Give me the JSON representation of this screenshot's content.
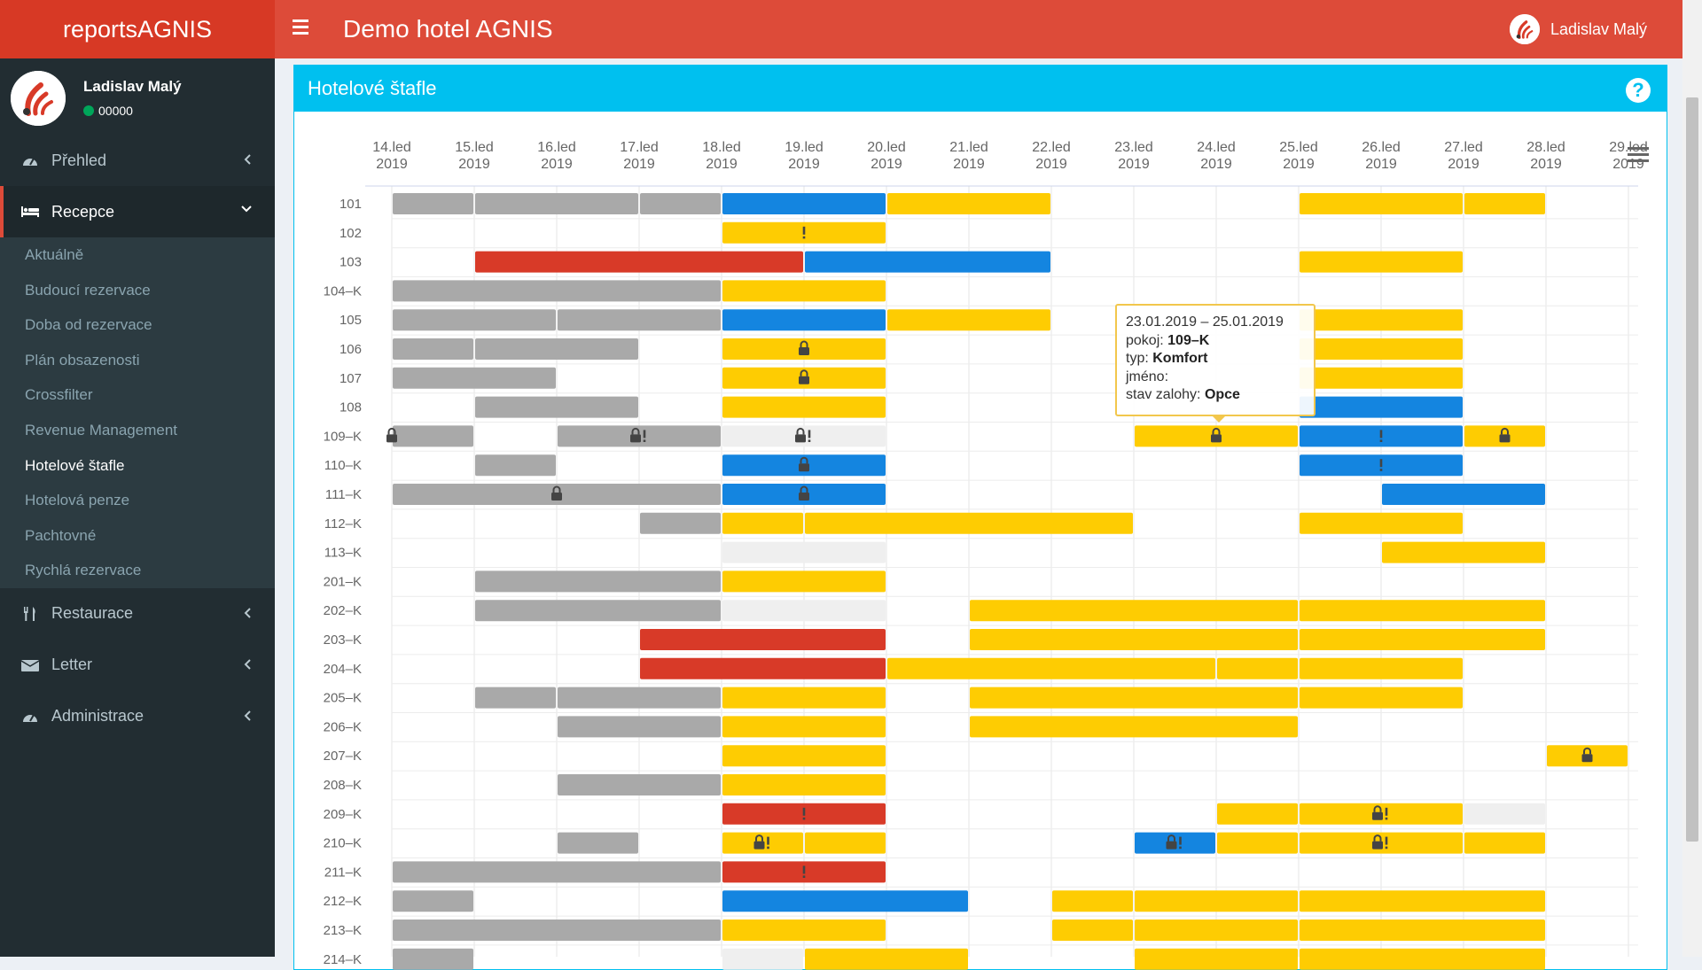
{
  "app": {
    "title": "reportsAGNIS",
    "hotel": "Demo hotel AGNIS"
  },
  "user": {
    "name": "Ladislav Malý",
    "status": "00000"
  },
  "sidebar": {
    "menu": [
      {
        "label": "Přehled",
        "icon": "dashboard-icon"
      },
      {
        "label": "Recepce",
        "icon": "bed-icon"
      },
      {
        "label": "Restaurace",
        "icon": "cutlery-icon"
      },
      {
        "label": "Letter",
        "icon": "envelope-icon"
      },
      {
        "label": "Administrace",
        "icon": "dashboard-icon"
      }
    ],
    "submenu": [
      "Aktuálně",
      "Budoucí rezervace",
      "Doba od rezervace",
      "Plán obsazenosti",
      "Crossfilter",
      "Revenue Management",
      "Hotelové štafle",
      "Hotelová penze",
      "Pachtovné",
      "Rychlá rezervace"
    ],
    "active_submenu": "Hotelové štafle"
  },
  "box": {
    "title": "Hotelové štafle",
    "help": "?"
  },
  "tooltip": {
    "dates": "23.01.2019 – 25.01.2019",
    "room_label": "pokoj:",
    "room": "109–K",
    "type_label": "typ:",
    "type": "Komfort",
    "name_label": "jméno:",
    "name": "",
    "deposit_label": "stav zalohy:",
    "deposit": "Opce"
  },
  "chart_data": {
    "type": "gantt",
    "dates": [
      "14.led 2019",
      "15.led 2019",
      "16.led 2019",
      "17.led 2019",
      "18.led 2019",
      "19.led 2019",
      "20.led 2019",
      "21.led 2019",
      "22.led 2019",
      "23.led 2019",
      "24.led 2019",
      "25.led 2019",
      "26.led 2019",
      "27.led 2019",
      "28.led 2019",
      "29.led 2019"
    ],
    "rooms": [
      "101",
      "102",
      "103",
      "104–K",
      "105",
      "106",
      "107",
      "108",
      "109–K",
      "110–K",
      "111–K",
      "112–K",
      "113–K",
      "201–K",
      "202–K",
      "203–K",
      "204–K",
      "205–K",
      "206–K",
      "207–K",
      "208–K",
      "209–K",
      "210–K",
      "211–K",
      "212–K",
      "213–K",
      "214–K"
    ],
    "colors": {
      "gray": "#a9a9a9",
      "blue": "#1485e0",
      "yellow": "#fecc02",
      "red": "#d83a28",
      "light": "#efefef"
    },
    "bars": [
      [
        "101",
        0,
        1,
        "gray",
        ""
      ],
      [
        "101",
        1,
        3,
        "gray",
        ""
      ],
      [
        "101",
        3,
        4,
        "gray",
        ""
      ],
      [
        "101",
        4,
        6,
        "blue",
        ""
      ],
      [
        "101",
        6,
        8,
        "yellow",
        ""
      ],
      [
        "101",
        11,
        13,
        "yellow",
        ""
      ],
      [
        "101",
        13,
        14,
        "yellow",
        ""
      ],
      [
        "102",
        4,
        6,
        "yellow",
        "!"
      ],
      [
        "103",
        1,
        5,
        "red",
        ""
      ],
      [
        "103",
        5,
        8,
        "blue",
        ""
      ],
      [
        "103",
        11,
        13,
        "yellow",
        ""
      ],
      [
        "104–K",
        0,
        4,
        "gray",
        ""
      ],
      [
        "104–K",
        4,
        6,
        "yellow",
        ""
      ],
      [
        "105",
        0,
        2,
        "gray",
        ""
      ],
      [
        "105",
        2,
        4,
        "gray",
        ""
      ],
      [
        "105",
        4,
        6,
        "blue",
        ""
      ],
      [
        "105",
        6,
        8,
        "yellow",
        ""
      ],
      [
        "105",
        11,
        13,
        "yellow",
        ""
      ],
      [
        "106",
        0,
        1,
        "gray",
        ""
      ],
      [
        "106",
        1,
        3,
        "gray",
        ""
      ],
      [
        "106",
        4,
        6,
        "yellow",
        "lock"
      ],
      [
        "106",
        11,
        13,
        "yellow",
        ""
      ],
      [
        "107",
        0,
        2,
        "gray",
        ""
      ],
      [
        "107",
        4,
        6,
        "yellow",
        "lock"
      ],
      [
        "107",
        11,
        13,
        "yellow",
        ""
      ],
      [
        "108",
        1,
        3,
        "gray",
        ""
      ],
      [
        "108",
        4,
        6,
        "yellow",
        ""
      ],
      [
        "108",
        11,
        13,
        "blue",
        ""
      ],
      [
        "109–K",
        0,
        1,
        "gray",
        "lock-left"
      ],
      [
        "109–K",
        2,
        4,
        "gray",
        "lock!"
      ],
      [
        "109–K",
        4,
        6,
        "light",
        "lock!"
      ],
      [
        "109–K",
        9,
        11,
        "yellow",
        "lock"
      ],
      [
        "109–K",
        11,
        13,
        "blue",
        "!"
      ],
      [
        "109–K",
        13,
        14,
        "yellow",
        "lock"
      ],
      [
        "110–K",
        1,
        2,
        "gray",
        ""
      ],
      [
        "110–K",
        4,
        6,
        "blue",
        "lock"
      ],
      [
        "110–K",
        11,
        13,
        "blue",
        "!"
      ],
      [
        "111–K",
        0,
        4,
        "gray",
        "lock"
      ],
      [
        "111–K",
        4,
        6,
        "blue",
        "lock"
      ],
      [
        "111–K",
        12,
        14,
        "blue",
        ""
      ],
      [
        "112–K",
        3,
        4,
        "gray",
        ""
      ],
      [
        "112–K",
        4,
        5,
        "yellow",
        ""
      ],
      [
        "112–K",
        5,
        9,
        "yellow",
        ""
      ],
      [
        "112–K",
        11,
        13,
        "yellow",
        ""
      ],
      [
        "113–K",
        4,
        6,
        "light",
        ""
      ],
      [
        "113–K",
        12,
        14,
        "yellow",
        ""
      ],
      [
        "201–K",
        1,
        4,
        "gray",
        ""
      ],
      [
        "201–K",
        4,
        6,
        "yellow",
        ""
      ],
      [
        "202–K",
        1,
        4,
        "gray",
        ""
      ],
      [
        "202–K",
        4,
        6,
        "light",
        ""
      ],
      [
        "202–K",
        7,
        11,
        "yellow",
        ""
      ],
      [
        "202–K",
        11,
        14,
        "yellow",
        ""
      ],
      [
        "203–K",
        3,
        6,
        "red",
        ""
      ],
      [
        "203–K",
        7,
        11,
        "yellow",
        ""
      ],
      [
        "203–K",
        11,
        14,
        "yellow",
        ""
      ],
      [
        "204–K",
        3,
        6,
        "red",
        ""
      ],
      [
        "204–K",
        6,
        10,
        "yellow",
        ""
      ],
      [
        "204–K",
        10,
        11,
        "yellow",
        ""
      ],
      [
        "204–K",
        11,
        13,
        "yellow",
        ""
      ],
      [
        "205–K",
        1,
        2,
        "gray",
        ""
      ],
      [
        "205–K",
        2,
        4,
        "gray",
        ""
      ],
      [
        "205–K",
        4,
        6,
        "yellow",
        ""
      ],
      [
        "205–K",
        7,
        11,
        "yellow",
        ""
      ],
      [
        "205–K",
        11,
        13,
        "yellow",
        ""
      ],
      [
        "206–K",
        2,
        4,
        "gray",
        ""
      ],
      [
        "206–K",
        4,
        6,
        "yellow",
        ""
      ],
      [
        "206–K",
        7,
        11,
        "yellow",
        ""
      ],
      [
        "207–K",
        4,
        6,
        "yellow",
        ""
      ],
      [
        "207–K",
        14,
        15,
        "yellow",
        "lock"
      ],
      [
        "208–K",
        2,
        4,
        "gray",
        ""
      ],
      [
        "208–K",
        4,
        6,
        "yellow",
        ""
      ],
      [
        "209–K",
        4,
        6,
        "red",
        "!"
      ],
      [
        "209–K",
        10,
        11,
        "yellow",
        ""
      ],
      [
        "209–K",
        11,
        13,
        "yellow",
        "lock!"
      ],
      [
        "209–K",
        13,
        14,
        "light",
        ""
      ],
      [
        "210–K",
        2,
        3,
        "gray",
        ""
      ],
      [
        "210–K",
        4,
        5,
        "yellow",
        "lock!"
      ],
      [
        "210–K",
        5,
        6,
        "yellow",
        ""
      ],
      [
        "210–K",
        9,
        10,
        "blue",
        "lock!"
      ],
      [
        "210–K",
        10,
        11,
        "yellow",
        ""
      ],
      [
        "210–K",
        11,
        13,
        "yellow",
        "lock!"
      ],
      [
        "210–K",
        13,
        14,
        "yellow",
        ""
      ],
      [
        "211–K",
        0,
        4,
        "gray",
        ""
      ],
      [
        "211–K",
        4,
        6,
        "red",
        "!"
      ],
      [
        "212–K",
        0,
        1,
        "gray",
        ""
      ],
      [
        "212–K",
        4,
        7,
        "blue",
        ""
      ],
      [
        "212–K",
        8,
        9,
        "yellow",
        ""
      ],
      [
        "212–K",
        9,
        11,
        "yellow",
        ""
      ],
      [
        "212–K",
        11,
        14,
        "yellow",
        ""
      ],
      [
        "213–K",
        0,
        4,
        "gray",
        ""
      ],
      [
        "213–K",
        4,
        6,
        "yellow",
        ""
      ],
      [
        "213–K",
        8,
        9,
        "yellow",
        ""
      ],
      [
        "213–K",
        9,
        11,
        "yellow",
        ""
      ],
      [
        "213–K",
        11,
        14,
        "yellow",
        ""
      ],
      [
        "214–K",
        0,
        1,
        "gray",
        ""
      ],
      [
        "214–K",
        4,
        5,
        "light",
        ""
      ],
      [
        "214–K",
        5,
        7,
        "yellow",
        ""
      ],
      [
        "214–K",
        9,
        11,
        "yellow",
        ""
      ],
      [
        "214–K",
        11,
        14,
        "yellow",
        ""
      ]
    ]
  }
}
